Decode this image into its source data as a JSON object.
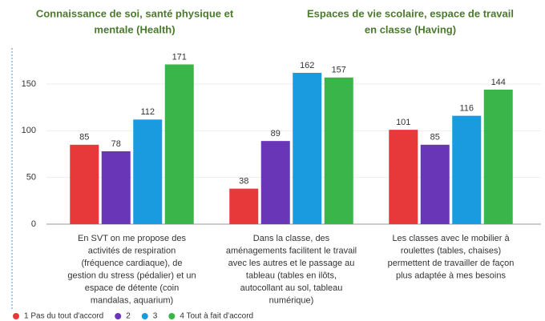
{
  "chart_data": {
    "type": "bar",
    "headings": [
      [
        "Connaissance de soi, santé physique et",
        "mentale (Health)"
      ],
      [
        "Espaces de vie scolaire, espace de travail",
        "en classe (Having)"
      ]
    ],
    "categories": [
      [
        "En SVT on me propose des",
        "activités de respiration",
        "(fréquence cardiaque), de",
        "gestion du stress (pédalier) et un",
        "espace de détente (coin",
        "mandalas, aquarium)"
      ],
      [
        "Dans la classe, des",
        "aménagements facilitent le travail",
        "avec les autres et le passage au",
        "tableau (tables en ilôts,",
        "autocollant au sol, tableau",
        "numérique)"
      ],
      [
        "Les classes avec le mobilier à",
        "roulettes (tables, chaises)",
        "permettent de travailler de façon",
        "plus adaptée à mes besoins"
      ]
    ],
    "series": [
      {
        "name": "1 Pas du tout d'accord",
        "color": "#e8393a",
        "values": [
          85,
          38,
          101
        ]
      },
      {
        "name": "2",
        "color": "#6a36b8",
        "values": [
          78,
          89,
          85
        ]
      },
      {
        "name": "3",
        "color": "#1a9be0",
        "values": [
          112,
          162,
          116
        ]
      },
      {
        "name": "4 Tout à fait d'accord",
        "color": "#3ab54a",
        "values": [
          171,
          157,
          144
        ]
      }
    ],
    "ylim": [
      0,
      175
    ],
    "yticks": [
      0,
      50,
      100,
      150
    ],
    "grid": true,
    "legend": "bottom"
  }
}
